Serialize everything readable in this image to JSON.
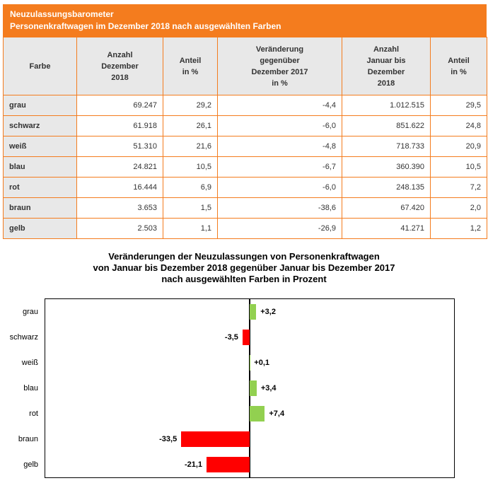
{
  "page": {
    "band": {
      "title": "Neuzulassungsbarometer",
      "subtitle": "Personenkraftwagen im Dezember 2018 nach ausgewählten Farben"
    }
  },
  "table": {
    "columns": [
      "Farbe",
      "Anzahl\nDezember\n2018",
      "Anteil\nin %",
      "Veränderung\ngegenüber\nDezember 2017\nin %",
      "Anzahl\nJanuar bis\nDezember\n2018",
      "Anteil\nin %"
    ]
  },
  "chart": {
    "title": "Veränderungen der Neuzulassungen von Personenkraftwagen\nvon Januar bis Dezember 2018 gegenüber Januar bis Dezember 2017\nnach ausgewählten Farben in Prozent"
  },
  "colors": {
    "accent_orange": "#F47C1E",
    "band_text": "#FFFFFF",
    "header_cell_bg": "#E8E8E8",
    "table_text": "#333333",
    "positive_bar": "#92D050",
    "negative_bar": "#FF0000"
  },
  "chart_data": [
    {
      "type": "table",
      "title": "Neuzulassungsbarometer – Personenkraftwagen im Dezember 2018 nach ausgewählten Farben",
      "columns": [
        "Farbe",
        "Anzahl Dezember 2018",
        "Anteil in %",
        "Veränderung gegenüber Dezember 2017 in %",
        "Anzahl Januar bis Dezember 2018",
        "Anteil in %"
      ],
      "rows": [
        [
          "grau",
          "69.247",
          "29,2",
          "-4,4",
          "1.012.515",
          "29,5"
        ],
        [
          "schwarz",
          "61.918",
          "26,1",
          "-6,0",
          "851.622",
          "24,8"
        ],
        [
          "weiß",
          "51.310",
          "21,6",
          "-4,8",
          "718.733",
          "20,9"
        ],
        [
          "blau",
          "24.821",
          "10,5",
          "-6,7",
          "360.390",
          "10,5"
        ],
        [
          "rot",
          "16.444",
          "6,9",
          "-6,0",
          "248.135",
          "7,2"
        ],
        [
          "braun",
          "3.653",
          "1,5",
          "-38,6",
          "67.420",
          "2,0"
        ],
        [
          "gelb",
          "2.503",
          "1,1",
          "-26,9",
          "41.271",
          "1,2"
        ]
      ]
    },
    {
      "type": "bar",
      "orientation": "horizontal",
      "title": "Veränderungen der Neuzulassungen von Personenkraftwagen von Januar bis Dezember 2018 gegenüber Januar bis Dezember 2017 nach ausgewählten Farben in Prozent",
      "categories": [
        "grau",
        "schwarz",
        "weiß",
        "blau",
        "rot",
        "braun",
        "gelb"
      ],
      "values": [
        3.2,
        -3.5,
        0.1,
        3.4,
        7.4,
        -33.5,
        -21.1
      ],
      "labels": [
        "+3,2",
        "-3,5",
        "+0,1",
        "+3,4",
        "+7,4",
        "-33,5",
        "-21,1"
      ],
      "xlim": [
        -100,
        100
      ],
      "grid": false,
      "legend": false,
      "positive_color": "#92D050",
      "negative_color": "#FF0000"
    }
  ]
}
